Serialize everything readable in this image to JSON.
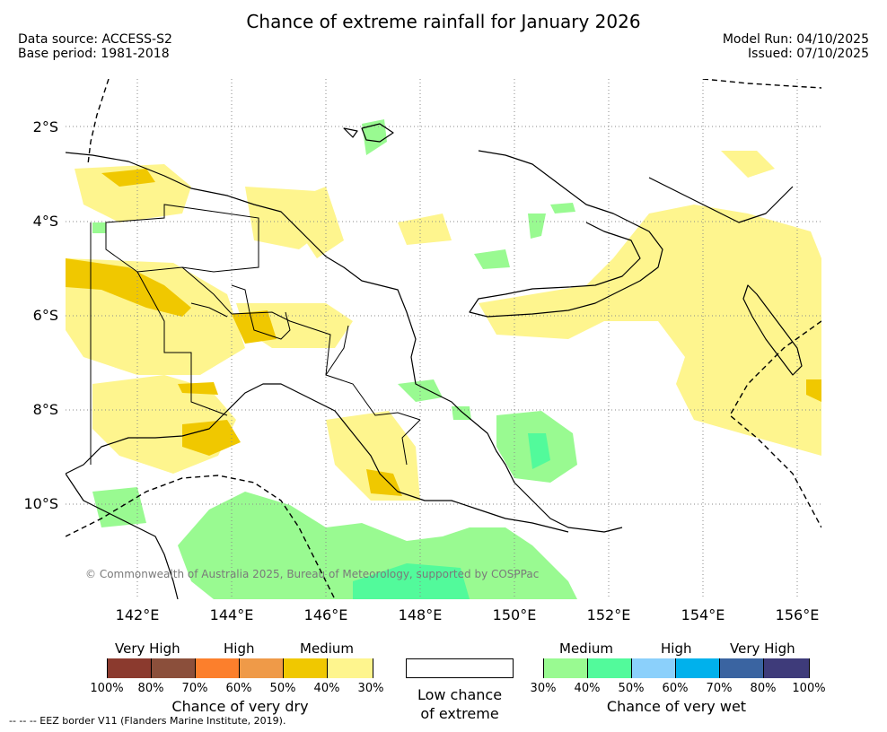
{
  "title": "Chance of extreme rainfall for January 2026",
  "data_source": "Data source: ACCESS-S2",
  "base_period": "Base period: 1981-2018",
  "model_run": "Model Run: 04/10/2025",
  "issued": "Issued: 07/10/2025",
  "copyright": "© Commonwealth of Australia 2025, Bureau of Meteorology, supported by COSPPac",
  "lat_labels": [
    "2°S",
    "4°S",
    "6°S",
    "8°S",
    "10°S"
  ],
  "lon_labels": [
    "142°E",
    "144°E",
    "146°E",
    "148°E",
    "150°E",
    "152°E",
    "154°E",
    "156°E"
  ],
  "legend": {
    "dry": {
      "groups": [
        "Very High",
        "High",
        "Medium"
      ],
      "ticks": [
        "100%",
        "80%",
        "70%",
        "60%",
        "50%",
        "40%",
        "30%"
      ],
      "colors": [
        "#8b3a2e",
        "#8b4f3b",
        "#fc7f2c",
        "#ef9a48",
        "#f0c800",
        "#fef58e"
      ],
      "caption": "Chance of very dry"
    },
    "neutral": {
      "caption_line1": "Low chance",
      "caption_line2": "of extreme",
      "color": "#ffffff"
    },
    "wet": {
      "groups": [
        "Medium",
        "High",
        "Very High"
      ],
      "ticks": [
        "30%",
        "40%",
        "50%",
        "60%",
        "70%",
        "80%",
        "100%"
      ],
      "colors": [
        "#99fa91",
        "#52fa9b",
        "#8bd0fb",
        "#00b1ec",
        "#3a64a1",
        "#3e3b7a"
      ],
      "caption": "Chance of very wet"
    }
  },
  "eez_note": "--  --  -- EEZ border V11 (Flanders Marine Institute, 2019)."
}
